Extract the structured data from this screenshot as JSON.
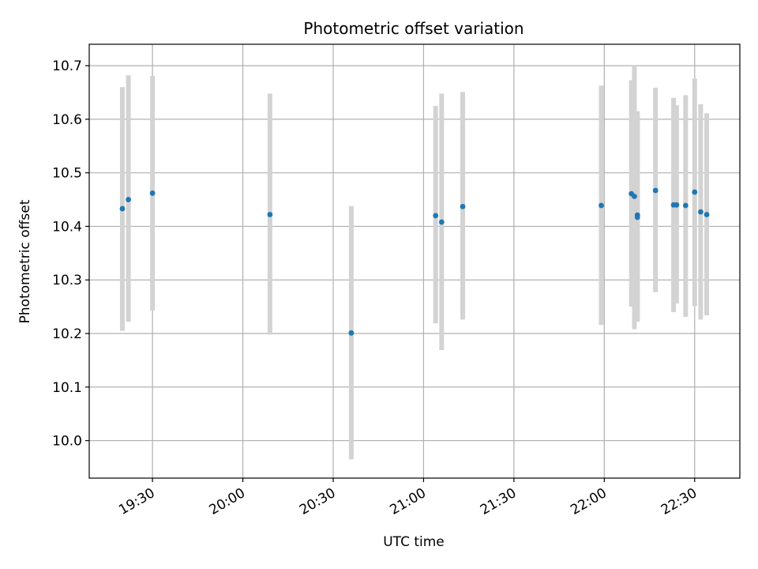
{
  "chart_data": {
    "type": "scatter",
    "title": "Photometric offset variation",
    "xlabel": "UTC time",
    "ylabel": "Photometric offset",
    "grid": true,
    "xlim": [
      "19:09",
      "22:45"
    ],
    "ylim": [
      9.93,
      10.74
    ],
    "x_ticks": [
      "19:30",
      "20:00",
      "20:30",
      "21:00",
      "21:30",
      "22:00",
      "22:30"
    ],
    "y_ticks": [
      "10.0",
      "10.1",
      "10.2",
      "10.3",
      "10.4",
      "10.5",
      "10.6",
      "10.7"
    ],
    "colors": {
      "point": "#1f77b4",
      "errorbar": "#d3d3d3",
      "grid": "#b0b0b0"
    },
    "series": [
      {
        "x": [
          "19:20",
          "19:22",
          "19:30",
          "20:09",
          "20:36",
          "21:04",
          "21:06",
          "21:13",
          "21:59",
          "22:09",
          "22:10",
          "22:11",
          "22:11",
          "22:17",
          "22:23",
          "22:24",
          "22:27",
          "22:30",
          "22:32",
          "22:34"
        ],
        "y": [
          10.433,
          10.45,
          10.462,
          10.422,
          10.201,
          10.42,
          10.408,
          10.437,
          10.439,
          10.461,
          10.456,
          10.421,
          10.417,
          10.467,
          10.44,
          10.44,
          10.439,
          10.464,
          10.427,
          10.422
        ],
        "yerr_low": [
          10.205,
          10.222,
          10.243,
          10.198,
          9.965,
          10.219,
          10.169,
          10.226,
          10.216,
          10.25,
          10.208,
          10.222,
          10.225,
          10.277,
          10.24,
          10.256,
          10.231,
          10.251,
          10.226,
          10.234
        ],
        "yerr_high": [
          10.66,
          10.682,
          10.681,
          10.648,
          10.438,
          10.625,
          10.648,
          10.651,
          10.663,
          10.673,
          10.7,
          10.615,
          10.61,
          10.659,
          10.64,
          10.626,
          10.645,
          10.676,
          10.628,
          10.611
        ]
      }
    ]
  }
}
